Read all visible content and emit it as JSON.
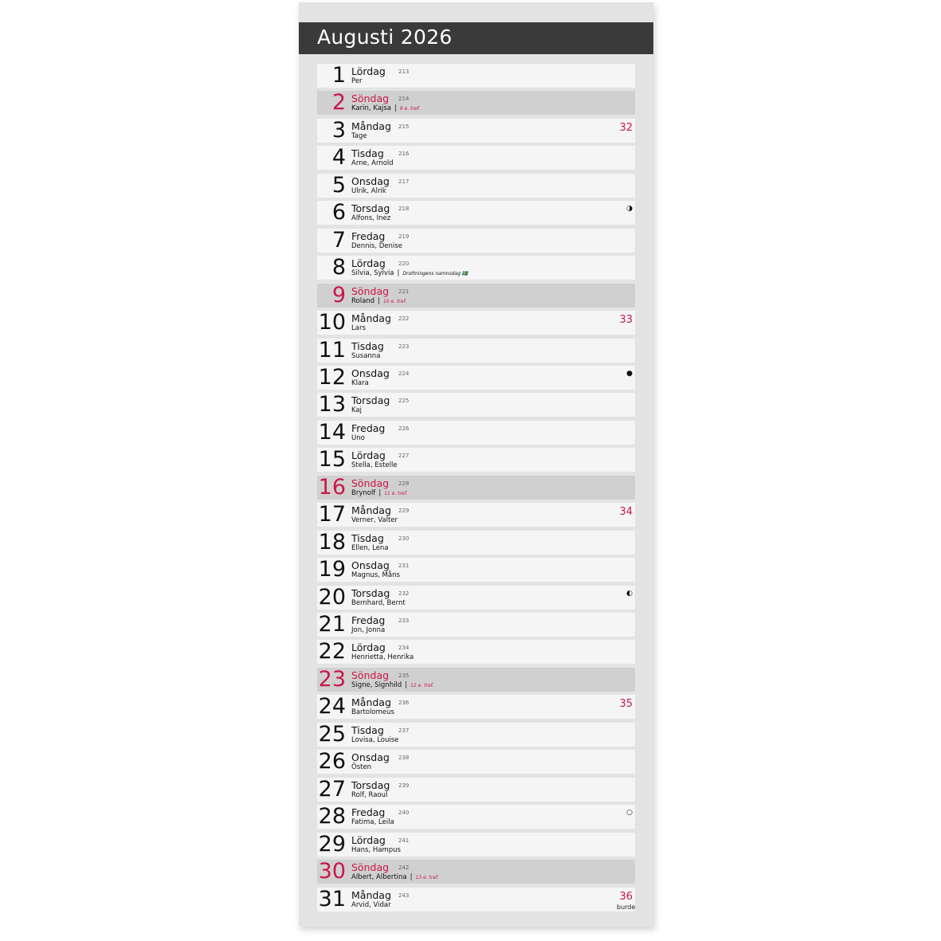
{
  "title": "Augusti 2026",
  "brand": "burde",
  "colors": {
    "header": "#3a3a3a",
    "sunday": "#c8184a",
    "sunday_row": "#d0d0d0"
  },
  "days": [
    {
      "d": "1",
      "wd": "Lördag",
      "n": "213",
      "names": "Per"
    },
    {
      "d": "2",
      "wd": "Söndag",
      "n": "214",
      "names": "Karin, Kajsa",
      "note": "9 e. tref.",
      "sun": true
    },
    {
      "d": "3",
      "wd": "Måndag",
      "n": "215",
      "names": "Tage",
      "week": "32"
    },
    {
      "d": "4",
      "wd": "Tisdag",
      "n": "216",
      "names": "Arne, Arnold"
    },
    {
      "d": "5",
      "wd": "Onsdag",
      "n": "217",
      "names": "Ulrik, Alrik"
    },
    {
      "d": "6",
      "wd": "Torsdag",
      "n": "218",
      "names": "Alfons, Inez",
      "moon": "◑"
    },
    {
      "d": "7",
      "wd": "Fredag",
      "n": "219",
      "names": "Dennis, Denise"
    },
    {
      "d": "8",
      "wd": "Lördag",
      "n": "220",
      "names": "Silvia, Sylvia",
      "note": "Drottningens namnsdag 🇸🇪"
    },
    {
      "d": "9",
      "wd": "Söndag",
      "n": "221",
      "names": "Roland",
      "note": "10 e. tref.",
      "sun": true
    },
    {
      "d": "10",
      "wd": "Måndag",
      "n": "222",
      "names": "Lars",
      "week": "33"
    },
    {
      "d": "11",
      "wd": "Tisdag",
      "n": "223",
      "names": "Susanna"
    },
    {
      "d": "12",
      "wd": "Onsdag",
      "n": "224",
      "names": "Klara",
      "moon": "●"
    },
    {
      "d": "13",
      "wd": "Torsdag",
      "n": "225",
      "names": "Kaj"
    },
    {
      "d": "14",
      "wd": "Fredag",
      "n": "226",
      "names": "Uno"
    },
    {
      "d": "15",
      "wd": "Lördag",
      "n": "227",
      "names": "Stella, Estelle"
    },
    {
      "d": "16",
      "wd": "Söndag",
      "n": "228",
      "names": "Brynolf",
      "note": "11 e. tref.",
      "sun": true
    },
    {
      "d": "17",
      "wd": "Måndag",
      "n": "229",
      "names": "Verner, Valter",
      "week": "34"
    },
    {
      "d": "18",
      "wd": "Tisdag",
      "n": "230",
      "names": "Ellen, Lena"
    },
    {
      "d": "19",
      "wd": "Onsdag",
      "n": "231",
      "names": "Magnus, Måns"
    },
    {
      "d": "20",
      "wd": "Torsdag",
      "n": "232",
      "names": "Bernhard, Bernt",
      "moon": "◐"
    },
    {
      "d": "21",
      "wd": "Fredag",
      "n": "233",
      "names": "Jon, Jonna"
    },
    {
      "d": "22",
      "wd": "Lördag",
      "n": "234",
      "names": "Henrietta, Henrika"
    },
    {
      "d": "23",
      "wd": "Söndag",
      "n": "235",
      "names": "Signe, Signhild",
      "note": "12 e. tref.",
      "sun": true
    },
    {
      "d": "24",
      "wd": "Måndag",
      "n": "236",
      "names": "Bartolomeus",
      "week": "35"
    },
    {
      "d": "25",
      "wd": "Tisdag",
      "n": "237",
      "names": "Lovisa, Louise"
    },
    {
      "d": "26",
      "wd": "Onsdag",
      "n": "238",
      "names": "Östen"
    },
    {
      "d": "27",
      "wd": "Torsdag",
      "n": "239",
      "names": "Rolf, Raoul"
    },
    {
      "d": "28",
      "wd": "Fredag",
      "n": "240",
      "names": "Fatima, Leila",
      "moon": "○"
    },
    {
      "d": "29",
      "wd": "Lördag",
      "n": "241",
      "names": "Hans, Hampus"
    },
    {
      "d": "30",
      "wd": "Söndag",
      "n": "242",
      "names": "Albert, Albertina",
      "note": "13 e. tref.",
      "sun": true
    },
    {
      "d": "31",
      "wd": "Måndag",
      "n": "243",
      "names": "Arvid, Vidar",
      "week": "36"
    }
  ]
}
